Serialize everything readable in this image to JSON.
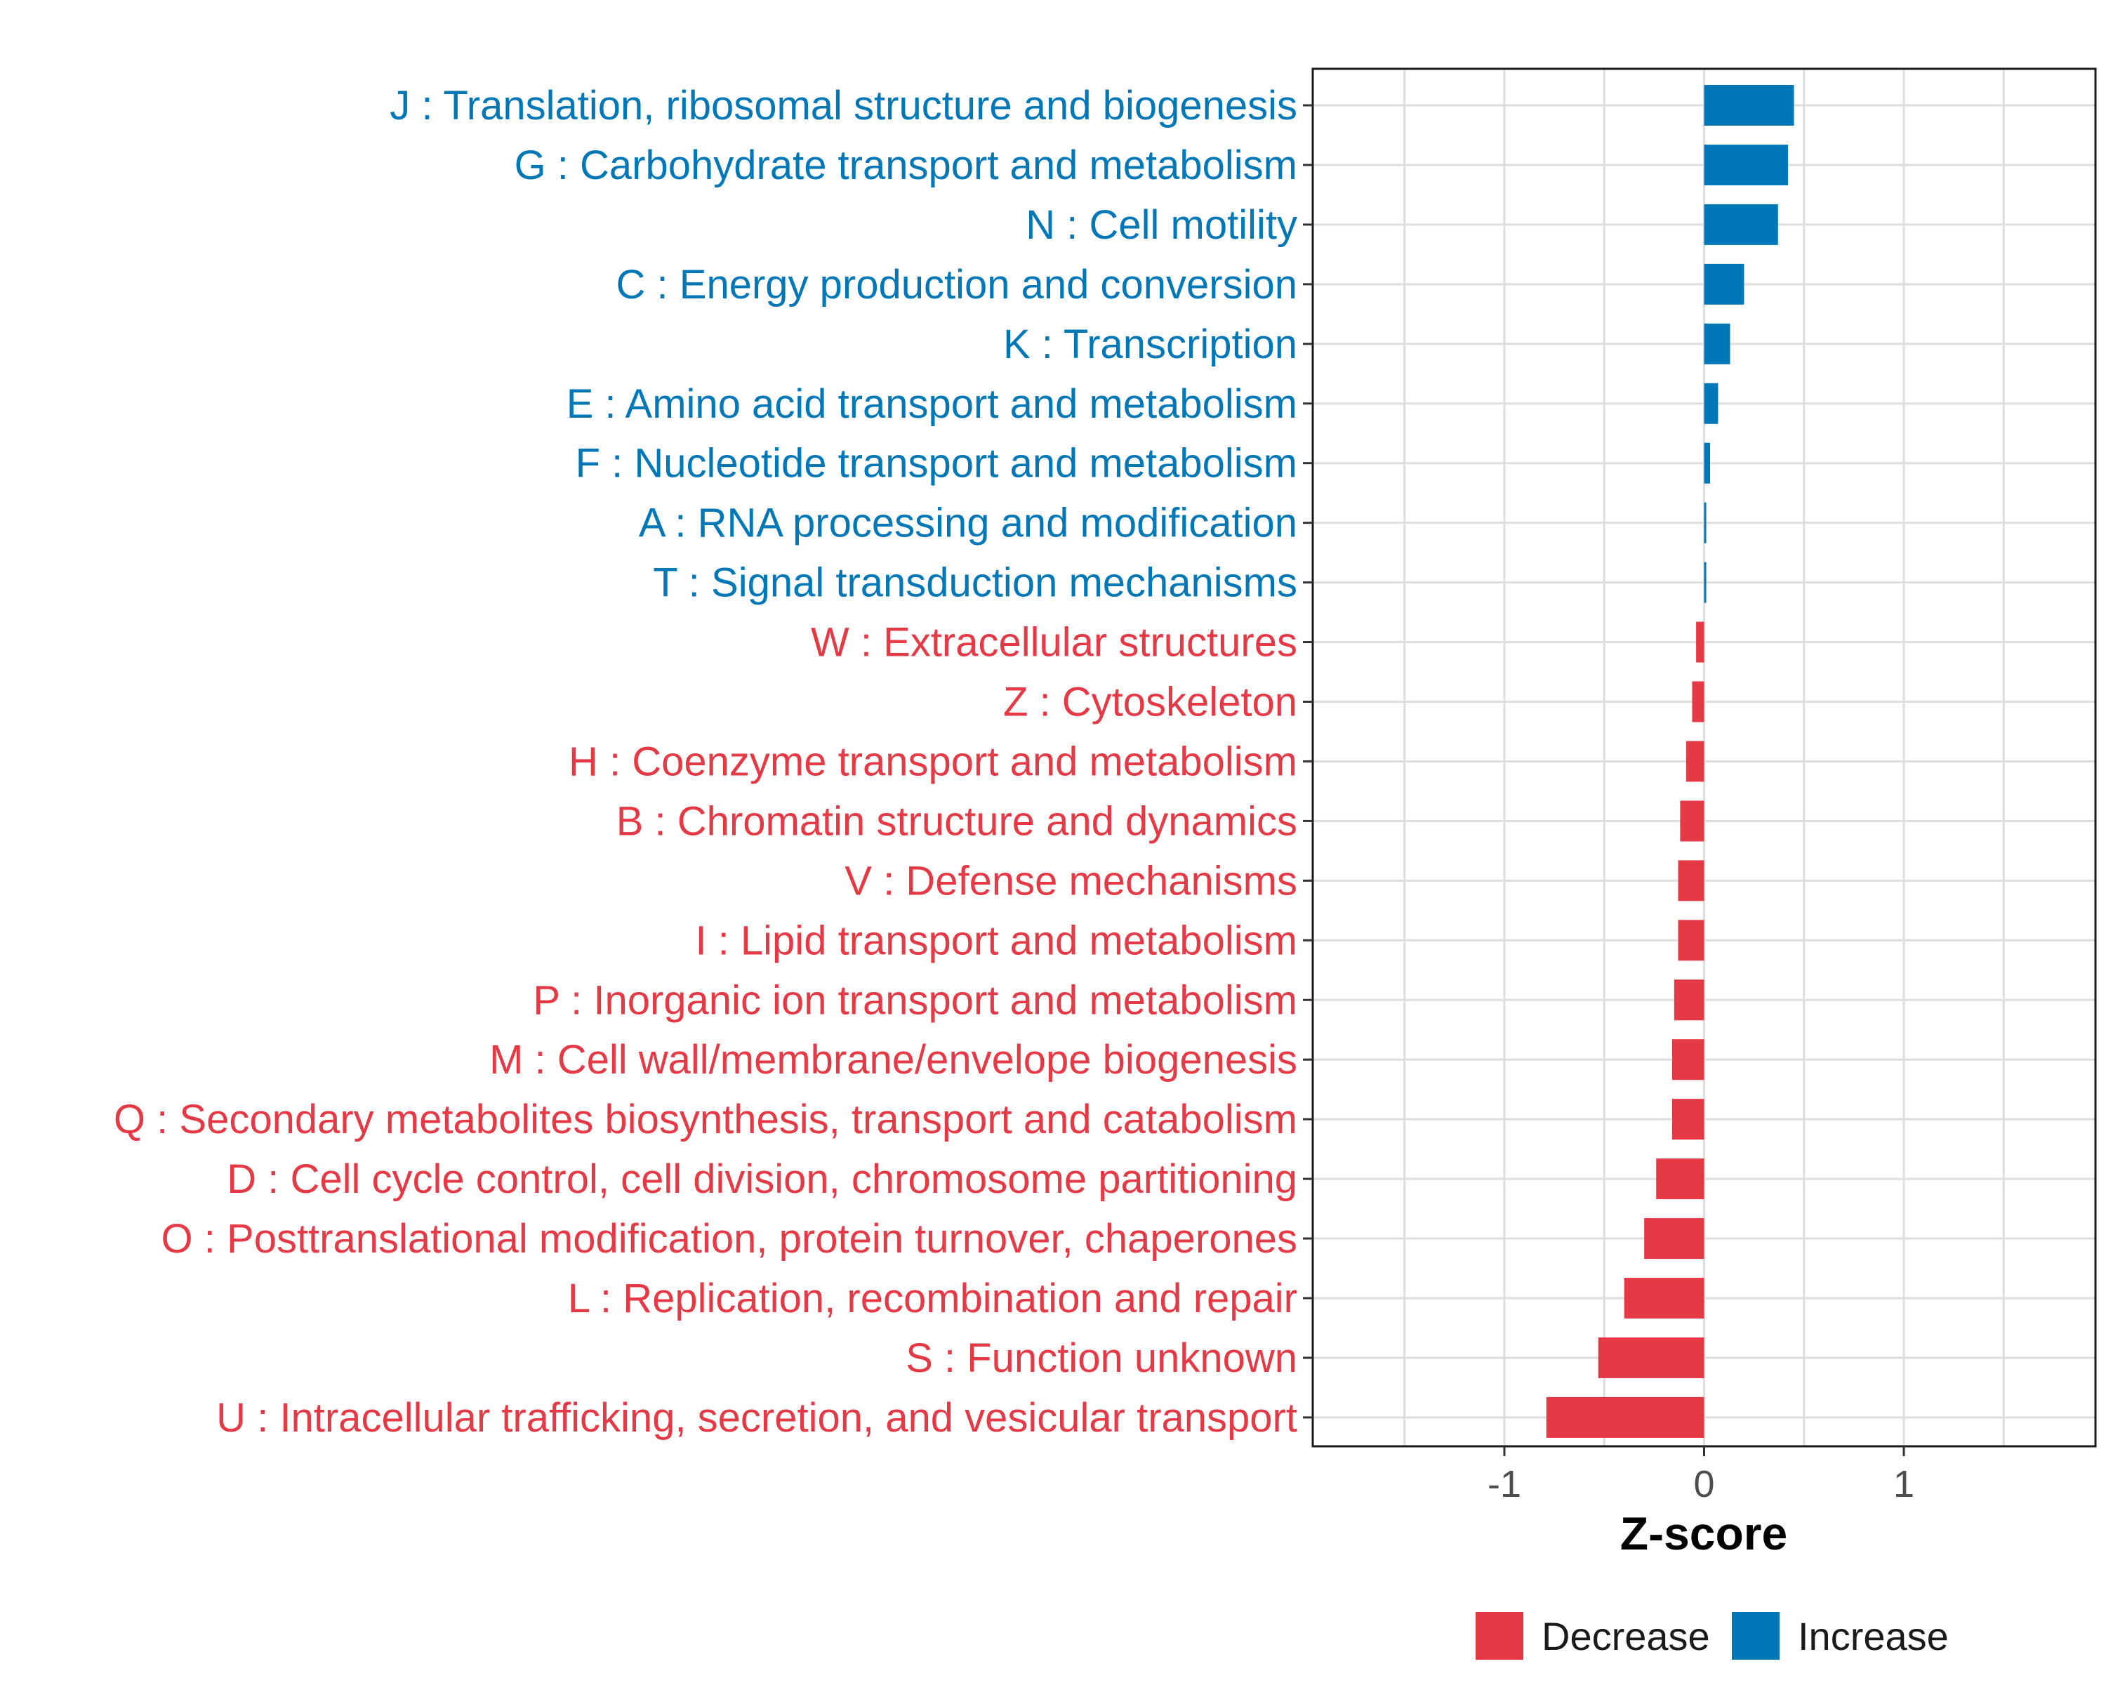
{
  "chart_data": {
    "type": "bar",
    "orientation": "horizontal",
    "title": "",
    "xlabel": "Z-score",
    "ylabel": "",
    "xlim": [
      -1.97,
      1.97
    ],
    "xticks": [
      -1,
      0,
      1
    ],
    "xtick_labels": [
      "-1",
      "0",
      "1"
    ],
    "grid": true,
    "legend_position": "bottom",
    "colors": {
      "Decrease": "#E63946",
      "Increase": "#0077B6"
    },
    "categories": [
      "J : Translation, ribosomal structure and biogenesis",
      "G : Carbohydrate transport and metabolism",
      "N : Cell motility",
      "C : Energy production and conversion",
      "K : Transcription",
      "E : Amino acid transport and metabolism",
      "F : Nucleotide transport and metabolism",
      "A : RNA processing and modification",
      "T : Signal transduction mechanisms",
      "W : Extracellular structures",
      "Z : Cytoskeleton",
      "H : Coenzyme transport and metabolism",
      "B : Chromatin structure and dynamics",
      "V : Defense mechanisms",
      "I : Lipid transport and metabolism",
      "P : Inorganic ion transport and metabolism",
      "M : Cell wall/membrane/envelope biogenesis",
      "Q : Secondary metabolites biosynthesis, transport and catabolism",
      "D : Cell cycle control, cell division, chromosome partitioning",
      "O : Posttranslational modification, protein turnover, chaperones",
      "L : Replication, recombination and repair",
      "S : Function unknown",
      "U : Intracellular trafficking, secretion, and vesicular transport"
    ],
    "values": [
      0.45,
      0.42,
      0.37,
      0.2,
      0.13,
      0.07,
      0.03,
      0.01,
      0.01,
      -0.04,
      -0.06,
      -0.09,
      -0.12,
      -0.13,
      -0.13,
      -0.15,
      -0.16,
      -0.16,
      -0.24,
      -0.3,
      -0.4,
      -0.53,
      -0.79
    ],
    "groups": [
      "Increase",
      "Increase",
      "Increase",
      "Increase",
      "Increase",
      "Increase",
      "Increase",
      "Increase",
      "Increase",
      "Decrease",
      "Decrease",
      "Decrease",
      "Decrease",
      "Decrease",
      "Decrease",
      "Decrease",
      "Decrease",
      "Decrease",
      "Decrease",
      "Decrease",
      "Decrease",
      "Decrease",
      "Decrease"
    ],
    "legend": [
      "Decrease",
      "Increase"
    ]
  }
}
